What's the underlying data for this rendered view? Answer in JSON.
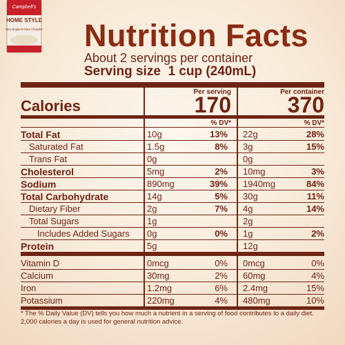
{
  "product": {
    "brand": "Campbell's",
    "line": "HOME STYLE",
    "variety": "New England Clam Chowder"
  },
  "header": {
    "title": "Nutrition Facts",
    "servings": "About 2 servings per container",
    "serving_size_label": "Serving size",
    "serving_size": "1 cup (240mL)"
  },
  "calories": {
    "label": "Calories",
    "serving_heading": "Per serving",
    "serving": "170",
    "container_heading": "Per container",
    "container": "370"
  },
  "dv_heading": "% DV*",
  "rows": [
    {
      "label": "Total Fat",
      "serving": [
        "10g",
        "13%"
      ],
      "container": [
        "22g",
        "28%"
      ]
    },
    {
      "label": "Saturated Fat",
      "serving": [
        "1.5g",
        "8%"
      ],
      "container": [
        "3g",
        "15%"
      ]
    },
    {
      "label": "Trans Fat",
      "serving": [
        "0g"
      ],
      "container": [
        "0g"
      ]
    },
    {
      "label": "Cholesterol",
      "serving": [
        "5mg",
        "2%"
      ],
      "container": [
        "10mg",
        "3%"
      ]
    },
    {
      "label": "Sodium",
      "serving": [
        "890mg",
        "39%"
      ],
      "container": [
        "1940mg",
        "84%"
      ]
    },
    {
      "label": "Total Carbohydrate",
      "serving": [
        "14g",
        "5%"
      ],
      "container": [
        "30g",
        "11%"
      ]
    },
    {
      "label": "Dietary Fiber",
      "serving": [
        "2g",
        "7%"
      ],
      "container": [
        "4g",
        "14%"
      ]
    },
    {
      "label": "Total Sugars",
      "serving": [
        "1g"
      ],
      "container": [
        "2g"
      ]
    },
    {
      "label": "Includes Added Sugars",
      "serving": [
        "0g",
        "0%"
      ],
      "container": [
        "1g",
        "2%"
      ]
    },
    {
      "label": "Protein",
      "serving": [
        "5g"
      ],
      "container": [
        "12g"
      ]
    },
    {
      "label": "Vitamin D",
      "serving": [
        "0mcg",
        "0%"
      ],
      "container": [
        "0mcg",
        "0%"
      ]
    },
    {
      "label": "Calcium",
      "serving": [
        "30mg",
        "2%"
      ],
      "container": [
        "60mg",
        "4%"
      ]
    },
    {
      "label": "Iron",
      "serving": [
        "1.2mg",
        "6%"
      ],
      "container": [
        "2.4mg",
        "15%"
      ]
    },
    {
      "label": "Potassium",
      "serving": [
        "220mg",
        "4%"
      ],
      "container": [
        "480mg",
        "10%"
      ]
    }
  ],
  "footnote": "* The % Daily Value (DV) tells you how much a nutrient in a serving of food contributes to a daily diet. 2,000 calories a day is used for general nutrition advice."
}
